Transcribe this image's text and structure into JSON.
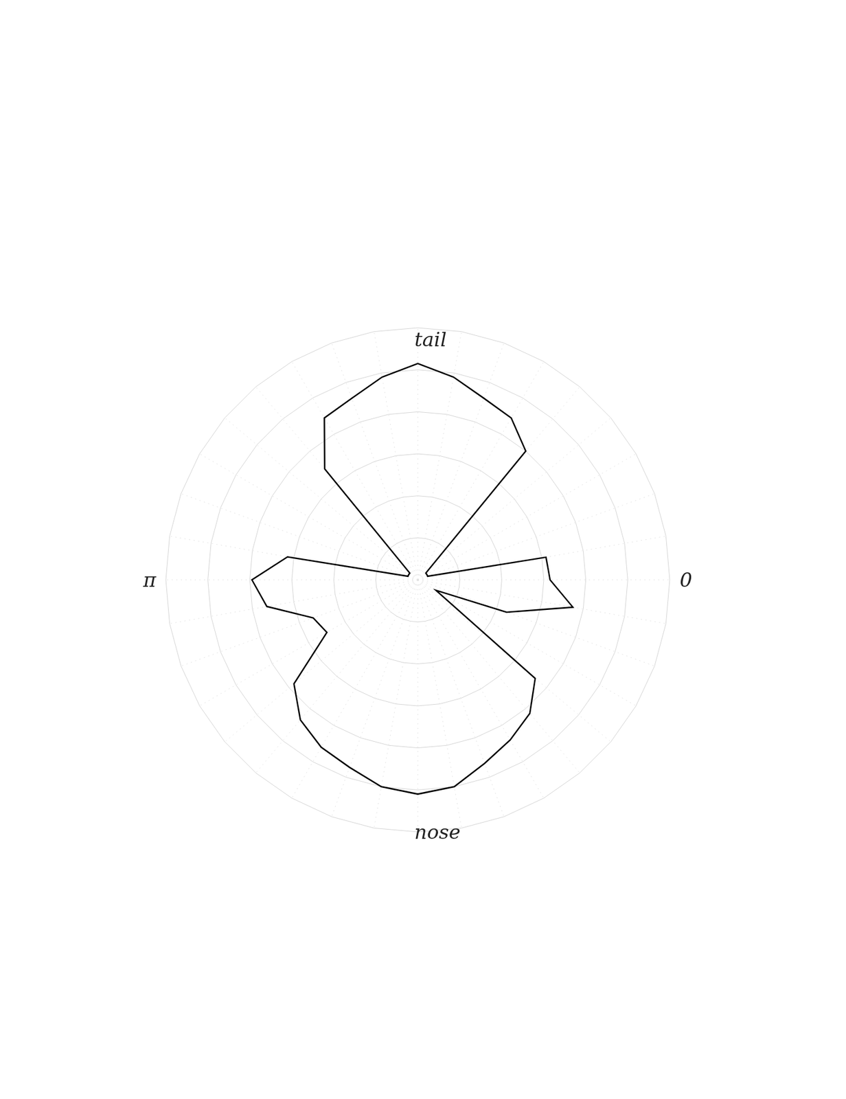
{
  "chart_data": {
    "type": "radar",
    "theta": [
      0,
      10,
      20,
      30,
      40,
      50,
      60,
      70,
      80,
      90,
      100,
      110,
      120,
      130,
      140,
      150,
      160,
      170,
      180,
      190,
      200,
      210,
      220,
      230,
      240,
      250,
      260,
      270,
      280,
      290,
      300,
      310,
      320,
      330,
      340,
      350
    ],
    "values": [
      6.3,
      7.5,
      4.5,
      1.0,
      7.3,
      8.3,
      8.8,
      9.3,
      10.0,
      10.2,
      10.0,
      9.5,
      9.2,
      8.7,
      7.7,
      5.0,
      5.3,
      7.3,
      7.9,
      6.3,
      0.5,
      0.5,
      0.5,
      6.9,
      8.9,
      9.2,
      9.8,
      10.3,
      9.8,
      9.2,
      8.9,
      8.0,
      0.5,
      0.5,
      0.5,
      6.2
    ],
    "color": "#000000",
    "ylim": [
      0,
      12
    ],
    "yticks": [
      0,
      2,
      4,
      6,
      8,
      10,
      12
    ],
    "xticks": [
      {
        "value": 0,
        "label": "0"
      },
      {
        "value": 180,
        "label": "π"
      }
    ],
    "grid": true,
    "tick_labels": false,
    "annotations": [
      {
        "text": "tail"
      },
      {
        "text": "nose"
      }
    ]
  }
}
